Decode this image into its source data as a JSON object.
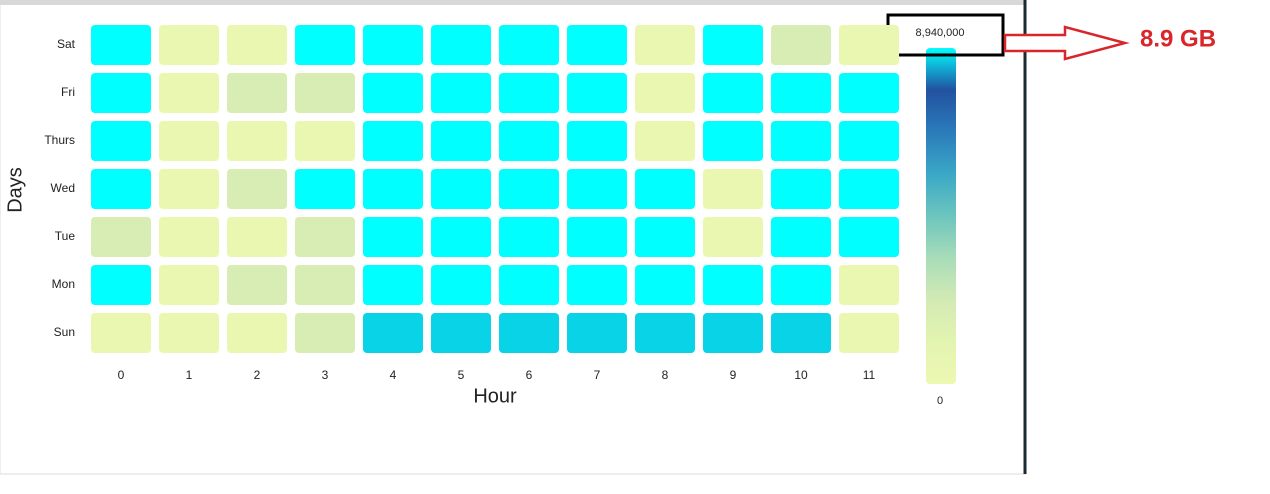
{
  "chart_data": {
    "type": "heatmap",
    "x_label": "Hour",
    "y_label": "Days",
    "x_categories": [
      "0",
      "1",
      "2",
      "3",
      "4",
      "5",
      "6",
      "7",
      "8",
      "9",
      "10",
      "11"
    ],
    "y_categories": [
      "Sat",
      "Fri",
      "Thurs",
      "Wed",
      "Tue",
      "Mon",
      "Sun"
    ],
    "values": [
      [
        8940000,
        400000,
        400000,
        8940000,
        8940000,
        8940000,
        8940000,
        8940000,
        400000,
        8940000,
        1900000,
        400000
      ],
      [
        8940000,
        400000,
        1900000,
        1900000,
        8940000,
        8940000,
        8940000,
        8940000,
        400000,
        8940000,
        8940000,
        8940000
      ],
      [
        8940000,
        400000,
        400000,
        400000,
        8940000,
        8940000,
        8940000,
        8940000,
        400000,
        8940000,
        8940000,
        8940000
      ],
      [
        8940000,
        400000,
        1900000,
        8940000,
        8940000,
        8940000,
        8940000,
        8940000,
        8940000,
        400000,
        8940000,
        8940000
      ],
      [
        1900000,
        400000,
        400000,
        1900000,
        8940000,
        8940000,
        8940000,
        8940000,
        8940000,
        400000,
        8940000,
        8940000
      ],
      [
        8940000,
        400000,
        1900000,
        1900000,
        8940000,
        8940000,
        8940000,
        8940000,
        8940000,
        8940000,
        8940000,
        400000
      ],
      [
        400000,
        400000,
        400000,
        1900000,
        8660000,
        8660000,
        8660000,
        8660000,
        8660000,
        8660000,
        8660000,
        400000
      ]
    ],
    "clim": [
      0,
      8940000
    ],
    "cticks": [
      0,
      {
        "value": 8940000,
        "label": "8,940,000"
      }
    ],
    "colorscale": [
      "#edf8b1",
      "#e3f4b1",
      "#d2eab4",
      "#a8dcb9",
      "#6cc5be",
      "#3aa8c6",
      "#2b7bba",
      "#2251a0",
      "#00ffff"
    ],
    "annotation": "8.9 GB"
  }
}
